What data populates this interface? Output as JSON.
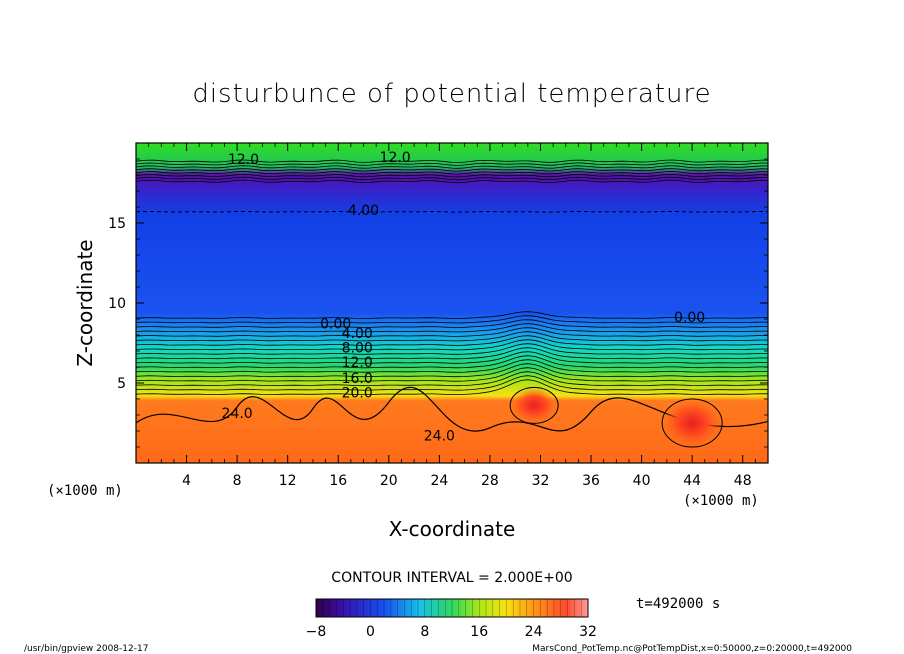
{
  "chart_data": {
    "type": "heatmap",
    "title": "disturbunce of potential temperature",
    "xlabel": "X-coordinate",
    "ylabel": "Z-coordinate",
    "x_unit_left": "(×1000 m)",
    "x_unit_right": "(×1000 m)",
    "xlim": [
      0,
      50
    ],
    "ylim": [
      0,
      20
    ],
    "x_ticks": [
      "4",
      "8",
      "12",
      "16",
      "20",
      "24",
      "28",
      "32",
      "36",
      "40",
      "44",
      "48"
    ],
    "y_ticks": [
      "5",
      "10",
      "15"
    ],
    "contour_interval_label": "CONTOUR INTERVAL = 2.000E+00",
    "time_label": "t=492000 s",
    "colorbar": {
      "min": -8,
      "max": 32,
      "ticks": [
        "−8",
        "0",
        "8",
        "16",
        "24",
        "32"
      ]
    },
    "contour_labels": [
      {
        "text": "12.0",
        "x": 8.5,
        "z": 18.7
      },
      {
        "text": "12.0",
        "x": 20.5,
        "z": 18.8
      },
      {
        "text": "4.00",
        "x": 18.0,
        "z": 15.5
      },
      {
        "text": "0.00",
        "x": 15.8,
        "z": 8.4
      },
      {
        "text": "0.00",
        "x": 43.8,
        "z": 8.8
      },
      {
        "text": "4.00",
        "x": 17.5,
        "z": 7.8
      },
      {
        "text": "8.00",
        "x": 17.5,
        "z": 6.9
      },
      {
        "text": "12.0",
        "x": 17.5,
        "z": 6.0
      },
      {
        "text": "16.0",
        "x": 17.5,
        "z": 5.0
      },
      {
        "text": "20.0",
        "x": 17.5,
        "z": 4.1
      },
      {
        "text": "24.0",
        "x": 8.0,
        "z": 2.8
      },
      {
        "text": "24.0",
        "x": 24.0,
        "z": 1.4
      }
    ],
    "footer_left": "/usr/bin/gpview  2008-12-17",
    "footer_right": "MarsCond_PotTemp.nc@PotTempDist,x=0:50000,z=0:20000,t=492000"
  }
}
